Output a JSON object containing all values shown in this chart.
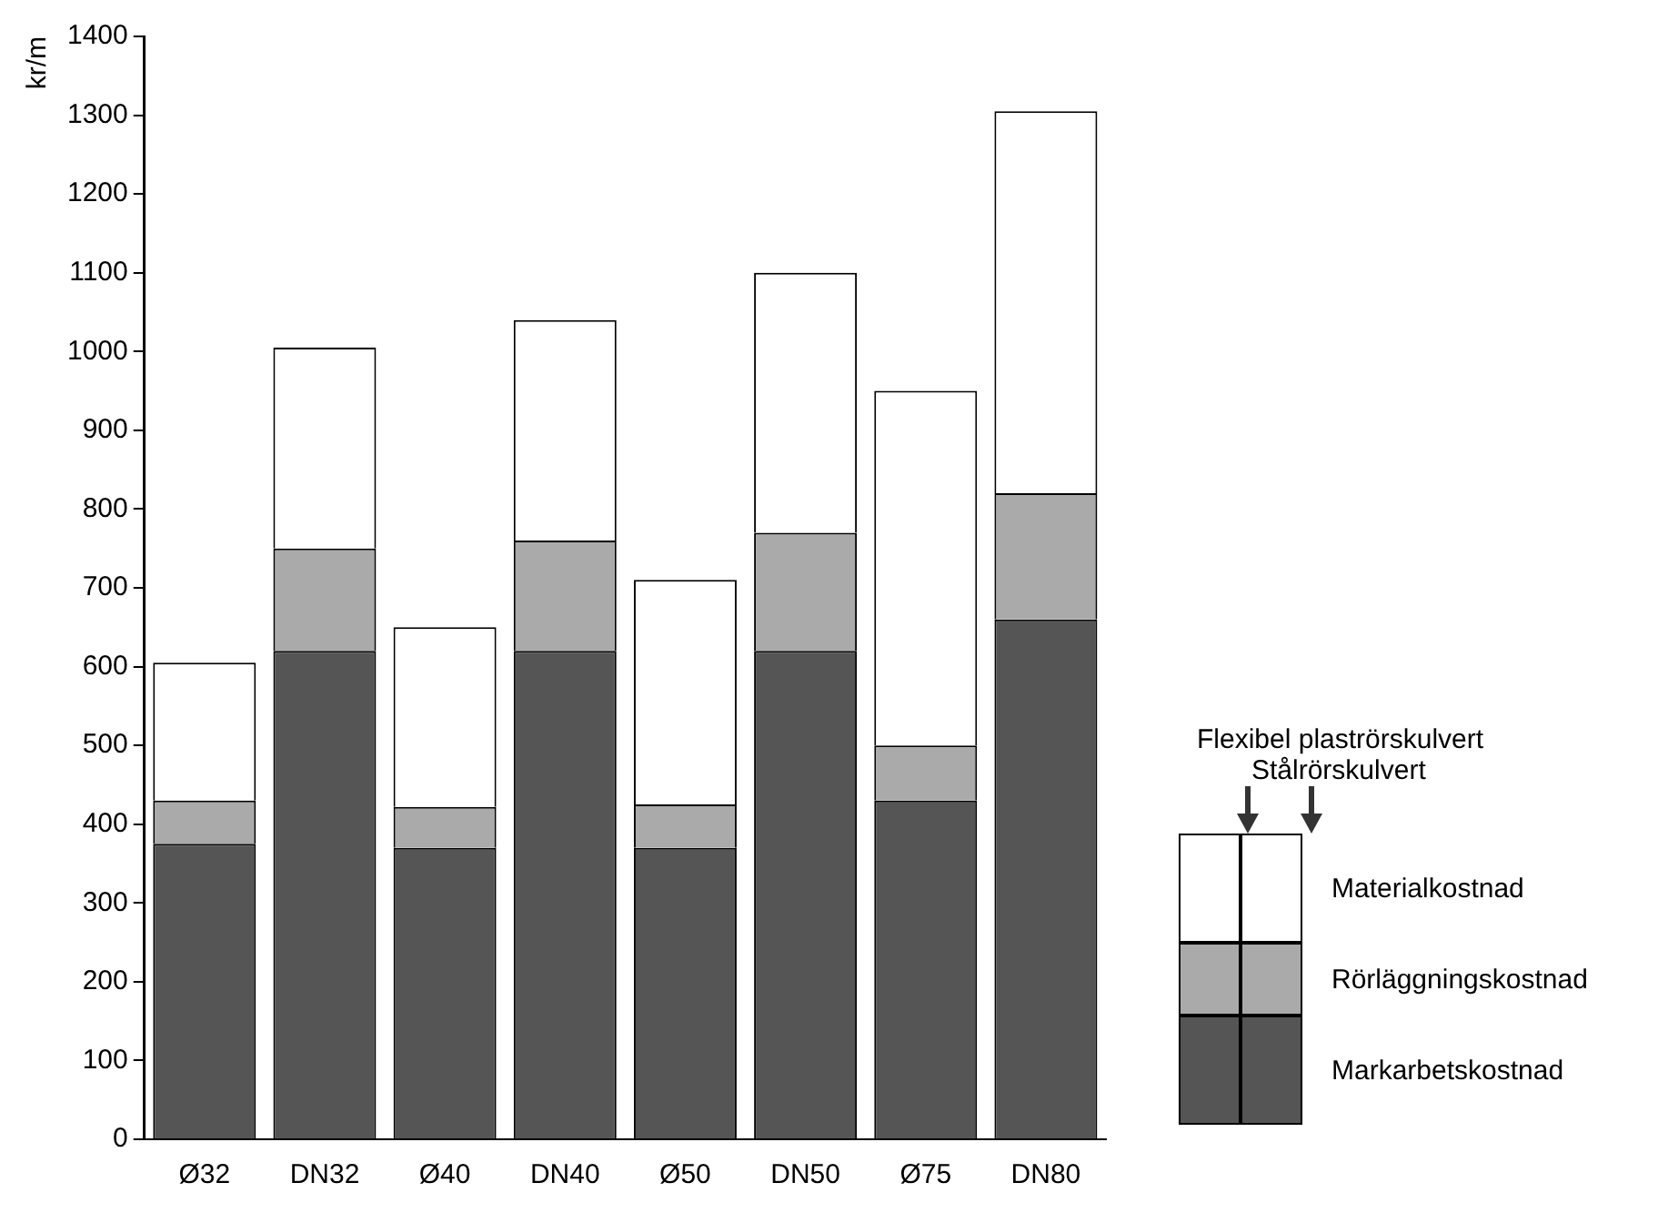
{
  "chart_data": {
    "type": "bar",
    "stacked": true,
    "ylabel": "kr/m",
    "categories": [
      "Ø32",
      "DN32",
      "Ø40",
      "DN40",
      "Ø50",
      "DN50",
      "Ø75",
      "DN80"
    ],
    "series": [
      {
        "name": "Markarbetskostnad",
        "color": "#555555",
        "values": [
          375,
          620,
          370,
          620,
          370,
          620,
          430,
          660
        ]
      },
      {
        "name": "Rörläggningskostnad",
        "color": "#aaaaaa",
        "values": [
          55,
          130,
          52,
          140,
          55,
          150,
          70,
          160
        ]
      },
      {
        "name": "Materialkostnad",
        "color": "#ffffff",
        "values": [
          175,
          255,
          228,
          280,
          285,
          330,
          450,
          485
        ]
      }
    ],
    "ylim": [
      0,
      1400
    ],
    "yticks": [
      0,
      100,
      200,
      300,
      400,
      500,
      600,
      700,
      800,
      900,
      1000,
      1100,
      1200,
      1300,
      1400
    ],
    "grid": false,
    "legend": "right",
    "annotations": [
      "Flexibel plaströrskulvert",
      "Stålrörskulvert"
    ]
  }
}
